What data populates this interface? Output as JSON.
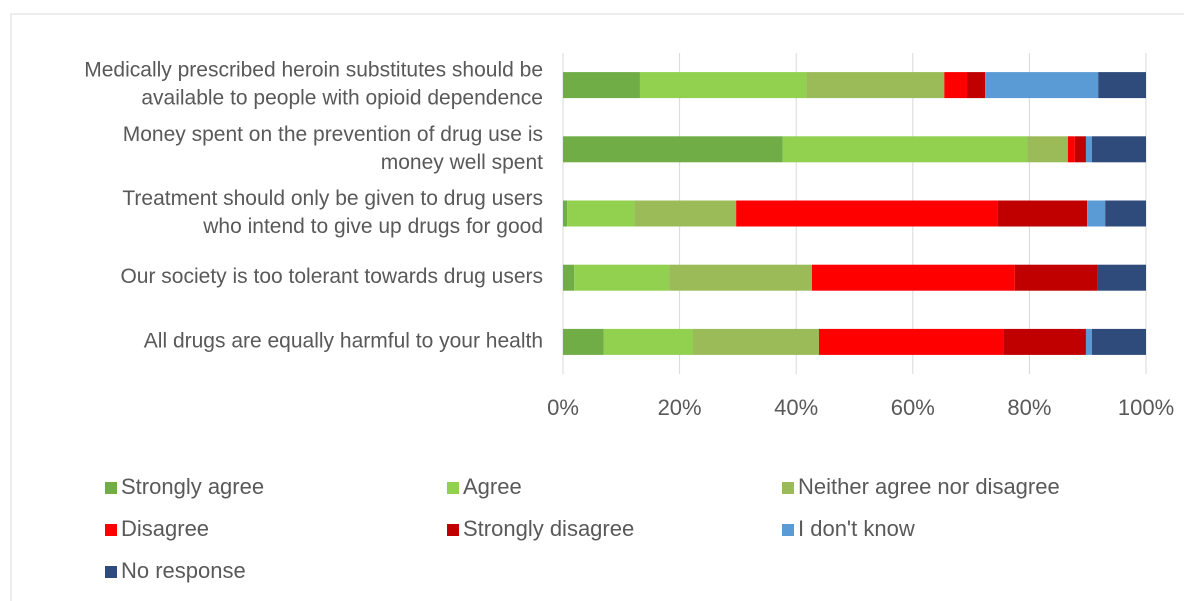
{
  "chart_data": {
    "type": "stacked_barh",
    "categories": [
      [
        "Medically prescribed heroin substitutes should be",
        "available to people with opioid dependence"
      ],
      [
        "Money spent on the prevention of drug use is",
        "money well spent"
      ],
      [
        "Treatment should only be given to drug users",
        "who intend to give up drugs for good"
      ],
      [
        "Our society is too tolerant towards drug users"
      ],
      [
        "All drugs are equally harmful to your health"
      ]
    ],
    "series": [
      {
        "name": "Strongly agree",
        "color": "#70ad47",
        "values": [
          13.2,
          37.7,
          0.7,
          1.9,
          7.0
        ]
      },
      {
        "name": "Agree",
        "color": "#92d050",
        "values": [
          28.5,
          41.9,
          11.5,
          16.3,
          15.3
        ]
      },
      {
        "name": "Neither agree nor disagree",
        "color": "#9bbb59",
        "values": [
          23.7,
          7.0,
          17.5,
          24.5,
          21.6
        ]
      },
      {
        "name": "Disagree",
        "color": "#ff0000",
        "values": [
          3.9,
          1.2,
          44.8,
          34.8,
          31.6
        ]
      },
      {
        "name": "Strongly disagree",
        "color": "#c00000",
        "values": [
          3.1,
          1.9,
          15.4,
          14.2,
          14.2
        ]
      },
      {
        "name": "I don't know",
        "color": "#5b9bd5",
        "values": [
          19.4,
          1.0,
          3.1,
          0,
          1.0
        ]
      },
      {
        "name": "No response",
        "color": "#2f4b7c",
        "values": [
          8.2,
          9.3,
          7.0,
          8.3,
          9.3
        ]
      }
    ],
    "xlim": [
      0,
      100
    ],
    "xticks": [
      {
        "value": 0,
        "label": "0%"
      },
      {
        "value": 20,
        "label": "20%"
      },
      {
        "value": 40,
        "label": "40%"
      },
      {
        "value": 60,
        "label": "60%"
      },
      {
        "value": 80,
        "label": "80%"
      },
      {
        "value": 100,
        "label": "100%"
      }
    ],
    "grid": true,
    "legend": "bottom"
  }
}
